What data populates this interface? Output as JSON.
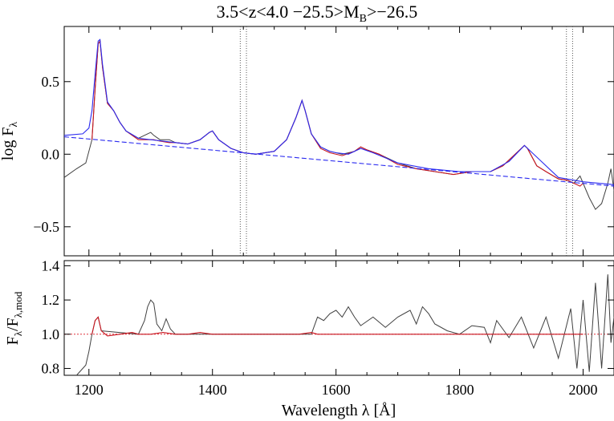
{
  "chart_data": [
    {
      "panel": "top",
      "type": "line",
      "title": "3.5<z<4.0 −25.5>M",
      "title_sub": "B",
      "title_tail": ">−26.5",
      "xlabel": "",
      "ylabel_main": "log F",
      "ylabel_sub": "λ",
      "xlim": [
        1160,
        2050
      ],
      "ylim": [
        -0.7,
        0.88
      ],
      "x_ticks": [
        1200,
        1400,
        1600,
        1800,
        2000
      ],
      "y_ticks": [
        -0.5,
        0.0,
        0.5
      ],
      "y_tick_labels": [
        "−0.5",
        "0.0",
        "0.5"
      ],
      "vlines": [
        1445,
        1455,
        1973,
        1983
      ],
      "colors": {
        "data": "#404040",
        "fit": "#c8141e",
        "model": "#2a2af0",
        "continuum": "#2a2af0"
      },
      "series": [
        {
          "role": "data",
          "style": "solid",
          "color": "#404040",
          "x": [
            1160,
            1180,
            1195,
            1205,
            1210,
            1215,
            1218,
            1222,
            1230,
            1240,
            1250,
            1260,
            1280,
            1295,
            1300,
            1305,
            1315,
            1330,
            1340,
            1360,
            1380,
            1395,
            1400,
            1410,
            1430,
            1450,
            1470,
            1500,
            1520,
            1535,
            1545,
            1550,
            1560,
            1575,
            1590,
            1610,
            1630,
            1640,
            1650,
            1670,
            1700,
            1730,
            1760,
            1790,
            1820,
            1850,
            1870,
            1890,
            1905,
            1910,
            1925,
            1940,
            1960,
            1975,
            1985,
            1995,
            2000,
            2010,
            2020,
            2030,
            2040,
            2045,
            2050
          ],
          "y": [
            -0.16,
            -0.1,
            -0.06,
            0.1,
            0.45,
            0.76,
            0.78,
            0.6,
            0.35,
            0.3,
            0.22,
            0.16,
            0.11,
            0.14,
            0.15,
            0.13,
            0.1,
            0.1,
            0.08,
            0.07,
            0.1,
            0.15,
            0.16,
            0.1,
            0.04,
            0.01,
            0.0,
            0.02,
            0.1,
            0.25,
            0.37,
            0.3,
            0.14,
            0.05,
            0.02,
            0.0,
            0.02,
            0.05,
            0.03,
            0.0,
            -0.06,
            -0.1,
            -0.12,
            -0.14,
            -0.12,
            -0.12,
            -0.08,
            0.0,
            0.06,
            0.04,
            -0.08,
            -0.12,
            -0.17,
            -0.18,
            -0.2,
            -0.15,
            -0.2,
            -0.3,
            -0.38,
            -0.34,
            -0.2,
            -0.1,
            -0.25
          ]
        },
        {
          "role": "fit",
          "style": "solid",
          "color": "#c8141e",
          "x": [
            1205,
            1210,
            1215,
            1218,
            1222,
            1230,
            1240,
            1250,
            1260,
            1280,
            1295,
            1300,
            1305,
            1315,
            1330,
            1340,
            1360,
            1380,
            1395,
            1400,
            1410,
            1430,
            1450,
            1470,
            1500,
            1520,
            1535,
            1545,
            1550,
            1560,
            1575,
            1590,
            1610,
            1630,
            1640,
            1650,
            1670,
            1700,
            1730,
            1760,
            1790,
            1820,
            1850,
            1870,
            1890,
            1905,
            1910,
            1925,
            1940,
            1960,
            1975,
            1985,
            1995,
            2000
          ],
          "y": [
            0.1,
            0.45,
            0.76,
            0.78,
            0.6,
            0.35,
            0.3,
            0.22,
            0.16,
            0.1,
            0.1,
            0.1,
            0.1,
            0.09,
            0.08,
            0.08,
            0.07,
            0.1,
            0.15,
            0.16,
            0.1,
            0.04,
            0.01,
            0.0,
            0.02,
            0.1,
            0.25,
            0.37,
            0.3,
            0.14,
            0.04,
            0.01,
            -0.01,
            0.02,
            0.05,
            0.03,
            0.0,
            -0.07,
            -0.1,
            -0.12,
            -0.14,
            -0.12,
            -0.12,
            -0.08,
            0.0,
            0.06,
            0.04,
            -0.08,
            -0.12,
            -0.17,
            -0.18,
            -0.2,
            -0.22,
            -0.2
          ]
        },
        {
          "role": "model",
          "style": "solid",
          "color": "#2a2af0",
          "x": [
            1160,
            1190,
            1200,
            1205,
            1210,
            1215,
            1218,
            1222,
            1230,
            1240,
            1250,
            1260,
            1280,
            1300,
            1320,
            1340,
            1360,
            1380,
            1395,
            1400,
            1410,
            1430,
            1450,
            1470,
            1500,
            1520,
            1535,
            1545,
            1550,
            1560,
            1575,
            1590,
            1600,
            1620,
            1640,
            1660,
            1700,
            1750,
            1800,
            1850,
            1880,
            1905,
            1930,
            1960,
            2000,
            2050
          ],
          "y": [
            0.13,
            0.14,
            0.18,
            0.3,
            0.55,
            0.78,
            0.79,
            0.62,
            0.36,
            0.3,
            0.22,
            0.16,
            0.11,
            0.1,
            0.09,
            0.08,
            0.07,
            0.1,
            0.15,
            0.16,
            0.1,
            0.04,
            0.01,
            0.0,
            0.02,
            0.1,
            0.25,
            0.37,
            0.3,
            0.14,
            0.05,
            0.02,
            0.01,
            0.0,
            0.04,
            0.01,
            -0.06,
            -0.1,
            -0.12,
            -0.12,
            -0.05,
            0.06,
            -0.04,
            -0.16,
            -0.19,
            -0.21
          ]
        },
        {
          "role": "continuum",
          "style": "dash",
          "color": "#2a2af0",
          "x": [
            1160,
            2050
          ],
          "y": [
            0.12,
            -0.22
          ]
        }
      ]
    },
    {
      "panel": "bottom",
      "type": "line",
      "xlabel": "Wavelength λ [Å]",
      "ylabel_main": "F",
      "ylabel_sub": "λ",
      "ylabel_mid": "/F",
      "ylabel_sub2": "λ,mod",
      "xlim": [
        1160,
        2050
      ],
      "ylim": [
        0.76,
        1.43
      ],
      "x_ticks": [
        1200,
        1400,
        1600,
        1800,
        2000
      ],
      "x_tick_labels": [
        "1200",
        "1400",
        "1600",
        "1800",
        "2000"
      ],
      "y_ticks": [
        0.8,
        1.0,
        1.2,
        1.4
      ],
      "y_tick_labels": [
        "0.8",
        "1.0",
        "1.2",
        "1.4"
      ],
      "reference_line": 1.0,
      "series": [
        {
          "role": "data",
          "style": "solid",
          "color": "#404040",
          "x": [
            1180,
            1195,
            1200,
            1205,
            1210,
            1215,
            1220,
            1280,
            1290,
            1295,
            1300,
            1305,
            1310,
            1318,
            1325,
            1332,
            1340,
            1560,
            1570,
            1580,
            1590,
            1600,
            1610,
            1620,
            1630,
            1640,
            1660,
            1680,
            1700,
            1720,
            1730,
            1740,
            1750,
            1760,
            1780,
            1800,
            1820,
            1840,
            1850,
            1860,
            1880,
            1900,
            1920,
            1940,
            1960,
            1980,
            1990,
            2000,
            2010,
            2020,
            2030,
            2040,
            2045,
            2050
          ],
          "y": [
            0.76,
            0.82,
            0.9,
            1.0,
            1.08,
            1.1,
            1.02,
            1.0,
            1.08,
            1.16,
            1.2,
            1.18,
            1.06,
            1.02,
            1.09,
            1.03,
            1.0,
            1.0,
            1.1,
            1.08,
            1.12,
            1.14,
            1.1,
            1.16,
            1.1,
            1.05,
            1.1,
            1.04,
            1.1,
            1.14,
            1.06,
            1.16,
            1.12,
            1.06,
            1.02,
            1.0,
            1.05,
            1.04,
            0.95,
            1.08,
            0.98,
            1.1,
            0.92,
            1.1,
            0.86,
            1.15,
            0.8,
            1.2,
            0.78,
            1.3,
            0.8,
            1.35,
            0.95,
            1.1
          ]
        },
        {
          "role": "fit",
          "style": "solid",
          "color": "#c8141e",
          "x": [
            1205,
            1210,
            1215,
            1220,
            1230,
            1250,
            1270,
            1280,
            1300,
            1320,
            1340,
            1360,
            1380,
            1400,
            1420,
            1440,
            1460,
            1480,
            1500,
            1520,
            1540,
            1560,
            1570,
            1580,
            1600,
            1620,
            1640,
            1660,
            1680,
            1700,
            1720,
            1740,
            1760,
            1780,
            1800,
            1820,
            1840,
            1850,
            1860,
            1880,
            1900,
            1920,
            1940,
            1960,
            1980,
            1990,
            2000
          ],
          "y": [
            1.0,
            1.08,
            1.1,
            1.02,
            0.99,
            1.0,
            1.01,
            1.0,
            1.0,
            1.01,
            1.0,
            1.0,
            1.01,
            1.0,
            1.0,
            1.0,
            1.0,
            1.0,
            1.0,
            1.0,
            1.0,
            1.01,
            1.0,
            1.0,
            1.0,
            1.0,
            1.0,
            1.0,
            1.0,
            1.0,
            1.0,
            1.0,
            1.0,
            1.0,
            1.0,
            1.0,
            1.0,
            1.0,
            1.0,
            1.0,
            1.0,
            1.0,
            1.0,
            1.0,
            1.0,
            1.0,
            1.0
          ]
        }
      ]
    }
  ]
}
